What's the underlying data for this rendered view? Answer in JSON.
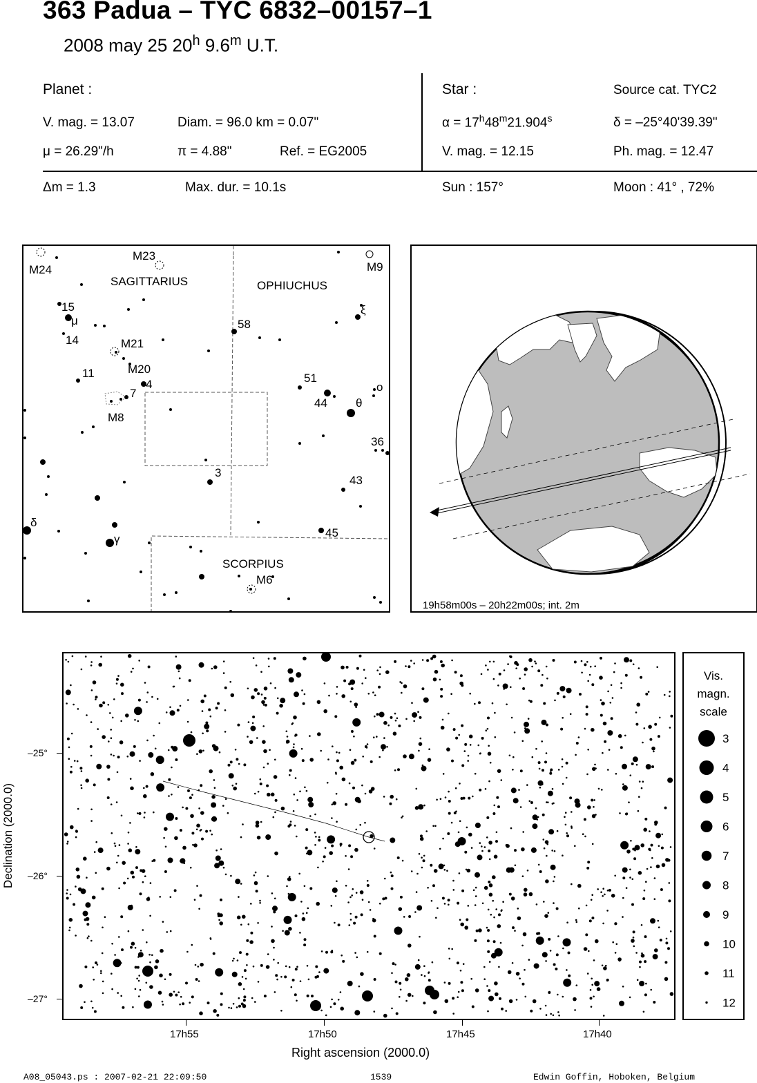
{
  "header": {
    "title": "363 Padua  –  TYC 6832–00157–1",
    "date": "2008 may 25  20",
    "hour_unit": "h",
    "minutes": " 9.6",
    "minute_unit": "m",
    "time_scale": " U.T."
  },
  "planet": {
    "heading": "Planet :",
    "vmag": "V. mag. = 13.07",
    "diam": "Diam. = 96.0 km = 0.07\"",
    "mu": "μ =  26.29\"/h",
    "pi": "π =  4.88\"",
    "ref": "Ref. = EG2005"
  },
  "star": {
    "heading": "Star :",
    "source": "Source cat.  TYC2",
    "alpha_pre": "α = 17",
    "alpha_h": "h",
    "alpha_min": "48",
    "alpha_m": "m",
    "alpha_sec": "21.904",
    "alpha_s": "s",
    "delta": "δ = –25°40'39.39\"",
    "vmag": "V. mag. = 12.15",
    "phmag": "Ph. mag. = 12.47"
  },
  "event": {
    "dm": "Δm = 1.3",
    "maxdur": "Max. dur. = 10.1s",
    "sun": "Sun : 157°",
    "moon": "Moon :  41° , 72%"
  },
  "finder": {
    "constellations": [
      "SAGITTARIUS",
      "OPHIUCHUS",
      "SCORPIUS"
    ],
    "objects": [
      "M24",
      "M23",
      "M9",
      "15",
      "μ",
      "14",
      "M21",
      "M20",
      "11",
      "4",
      "7",
      "M8",
      "58",
      "ξ",
      "51",
      "44",
      "θ",
      "o",
      "36",
      "3",
      "43",
      "δ",
      "γ",
      "45",
      "M6"
    ]
  },
  "earth_map": {
    "caption": "19h58m00s – 20h22m00s; int.  2m"
  },
  "starchart": {
    "xlabel": "Right ascension (2000.0)",
    "ylabel": "Declination (2000.0)",
    "xticks": [
      "17h55",
      "17h50",
      "17h45",
      "17h40"
    ],
    "yticks": [
      "–25°",
      "–26°",
      "–27°"
    ]
  },
  "legend": {
    "title_lines": [
      "Vis.",
      "magn.",
      "scale"
    ],
    "mags": [
      "3",
      "4",
      "5",
      "6",
      "7",
      "8",
      "9",
      "10",
      "11",
      "12"
    ]
  },
  "footer": {
    "file": "A08_05043.ps : 2007-02-21 22:09:50",
    "number": "1539",
    "author": "Edwin Goffin, Hoboken, Belgium"
  }
}
